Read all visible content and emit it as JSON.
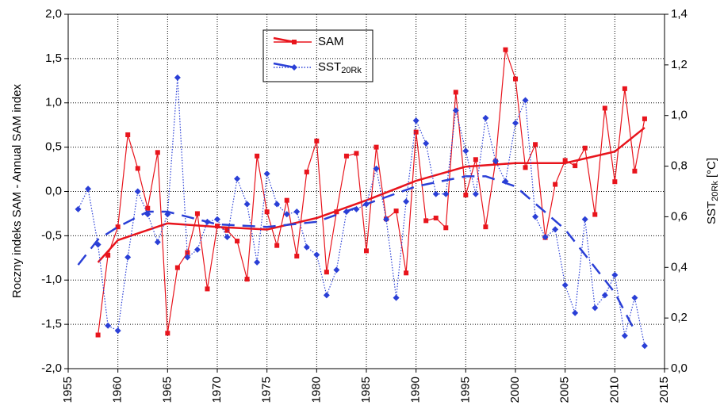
{
  "chart_data": {
    "type": "line",
    "ylabel": "Roczny indeks SAM - Annual SAM index",
    "y2label": "SST",
    "y2label_sub": "20Rk",
    "y2label_unit": "[°C]",
    "xlim": [
      1955,
      2015
    ],
    "xticks": [
      1955,
      1960,
      1965,
      1970,
      1975,
      1980,
      1985,
      1990,
      1995,
      2000,
      2005,
      2010,
      2015
    ],
    "ylim": [
      -2,
      2
    ],
    "yticks": [
      {
        "value": -2,
        "label": "-2,0"
      },
      {
        "value": -1.5,
        "label": "-1,5"
      },
      {
        "value": -1,
        "label": "-1,0"
      },
      {
        "value": -0.5,
        "label": "-0,5"
      },
      {
        "value": 0,
        "label": "0,0"
      },
      {
        "value": 0.5,
        "label": "0,5"
      },
      {
        "value": 1,
        "label": "1,0"
      },
      {
        "value": 1.5,
        "label": "1,5"
      },
      {
        "value": 2,
        "label": "2,0"
      }
    ],
    "y2lim": [
      0,
      1.4
    ],
    "y2ticks": [
      {
        "value": 0,
        "label": "0,0"
      },
      {
        "value": 0.2,
        "label": "0,2"
      },
      {
        "value": 0.4,
        "label": "0,4"
      },
      {
        "value": 0.6,
        "label": "0,6"
      },
      {
        "value": 0.8,
        "label": "0,8"
      },
      {
        "value": 1,
        "label": "1,0"
      },
      {
        "value": 1.2,
        "label": "1,2"
      },
      {
        "value": 1.4,
        "label": "1,4"
      }
    ],
    "grid": true,
    "legend": "top-center",
    "series": [
      {
        "name": "SAM",
        "color": "#e8141c",
        "marker": "square",
        "line": "solid",
        "x": [
          1958,
          1959,
          1960,
          1961,
          1962,
          1963,
          1964,
          1965,
          1966,
          1967,
          1968,
          1969,
          1970,
          1971,
          1972,
          1973,
          1974,
          1975,
          1976,
          1977,
          1978,
          1979,
          1980,
          1981,
          1982,
          1983,
          1984,
          1985,
          1986,
          1987,
          1988,
          1989,
          1990,
          1991,
          1992,
          1993,
          1994,
          1995,
          1996,
          1997,
          1998,
          1999,
          2000,
          2001,
          2002,
          2003,
          2004,
          2005,
          2006,
          2007,
          2008,
          2009,
          2010,
          2011,
          2012,
          2013
        ],
        "values": [
          -1.62,
          -0.72,
          -0.4,
          0.64,
          0.26,
          -0.19,
          0.44,
          -1.6,
          -0.86,
          -0.69,
          -0.25,
          -1.1,
          -0.39,
          -0.44,
          -0.56,
          -0.99,
          0.4,
          -0.23,
          -0.61,
          -0.1,
          -0.73,
          0.22,
          0.57,
          -0.91,
          -0.23,
          0.4,
          0.43,
          -0.67,
          0.5,
          -0.31,
          -0.22,
          -0.92,
          0.67,
          -0.33,
          -0.3,
          -0.41,
          1.12,
          -0.04,
          0.36,
          -0.4,
          0.34,
          1.6,
          1.27,
          0.27,
          0.53,
          -0.52,
          0.08,
          0.35,
          0.29,
          0.49,
          -0.26,
          0.94,
          0.11,
          1.16,
          0.23,
          0.82
        ],
        "trend_x": [
          1958,
          1960,
          1965,
          1970,
          1975,
          1980,
          1985,
          1990,
          1995,
          2000,
          2005,
          2010,
          2013
        ],
        "trend": [
          -0.8,
          -0.55,
          -0.36,
          -0.4,
          -0.43,
          -0.3,
          -0.1,
          0.12,
          0.28,
          0.32,
          0.32,
          0.45,
          0.72
        ]
      },
      {
        "name": "SST",
        "name_sub": "20Rk",
        "color": "#2a3fd6",
        "marker": "diamond",
        "line": "dotted",
        "axis": "y2",
        "x": [
          1956,
          1957,
          1958,
          1959,
          1960,
          1961,
          1962,
          1963,
          1964,
          1965,
          1966,
          1967,
          1968,
          1969,
          1970,
          1971,
          1972,
          1973,
          1974,
          1975,
          1976,
          1977,
          1978,
          1979,
          1980,
          1981,
          1982,
          1983,
          1984,
          1985,
          1986,
          1987,
          1988,
          1989,
          1990,
          1991,
          1992,
          1993,
          1994,
          1995,
          1996,
          1997,
          1998,
          1999,
          2000,
          2001,
          2002,
          2003,
          2004,
          2005,
          2006,
          2007,
          2008,
          2009,
          2010,
          2011,
          2012,
          2013
        ],
        "values": [
          0.63,
          0.71,
          0.49,
          0.17,
          0.15,
          0.44,
          0.7,
          0.61,
          0.5,
          0.61,
          1.15,
          0.44,
          0.47,
          0.58,
          0.59,
          0.52,
          0.75,
          0.65,
          0.42,
          0.77,
          0.65,
          0.61,
          0.62,
          0.48,
          0.45,
          0.29,
          0.39,
          0.62,
          0.63,
          0.65,
          0.79,
          0.59,
          0.28,
          0.66,
          0.98,
          0.89,
          0.69,
          0.69,
          1.02,
          0.86,
          0.69,
          0.99,
          0.82,
          0.74,
          0.97,
          1.06,
          0.6,
          0.52,
          0.55,
          0.33,
          0.22,
          0.59,
          0.24,
          0.29,
          0.37,
          0.13,
          0.28,
          0.09
        ],
        "trend_x": [
          1956,
          1958,
          1960,
          1963,
          1965,
          1970,
          1975,
          1980,
          1985,
          1990,
          1995,
          1997,
          2000,
          2005,
          2010,
          2012
        ],
        "trend": [
          0.41,
          0.51,
          0.56,
          0.62,
          0.62,
          0.57,
          0.56,
          0.58,
          0.65,
          0.72,
          0.76,
          0.76,
          0.72,
          0.55,
          0.3,
          0.15
        ]
      }
    ]
  }
}
